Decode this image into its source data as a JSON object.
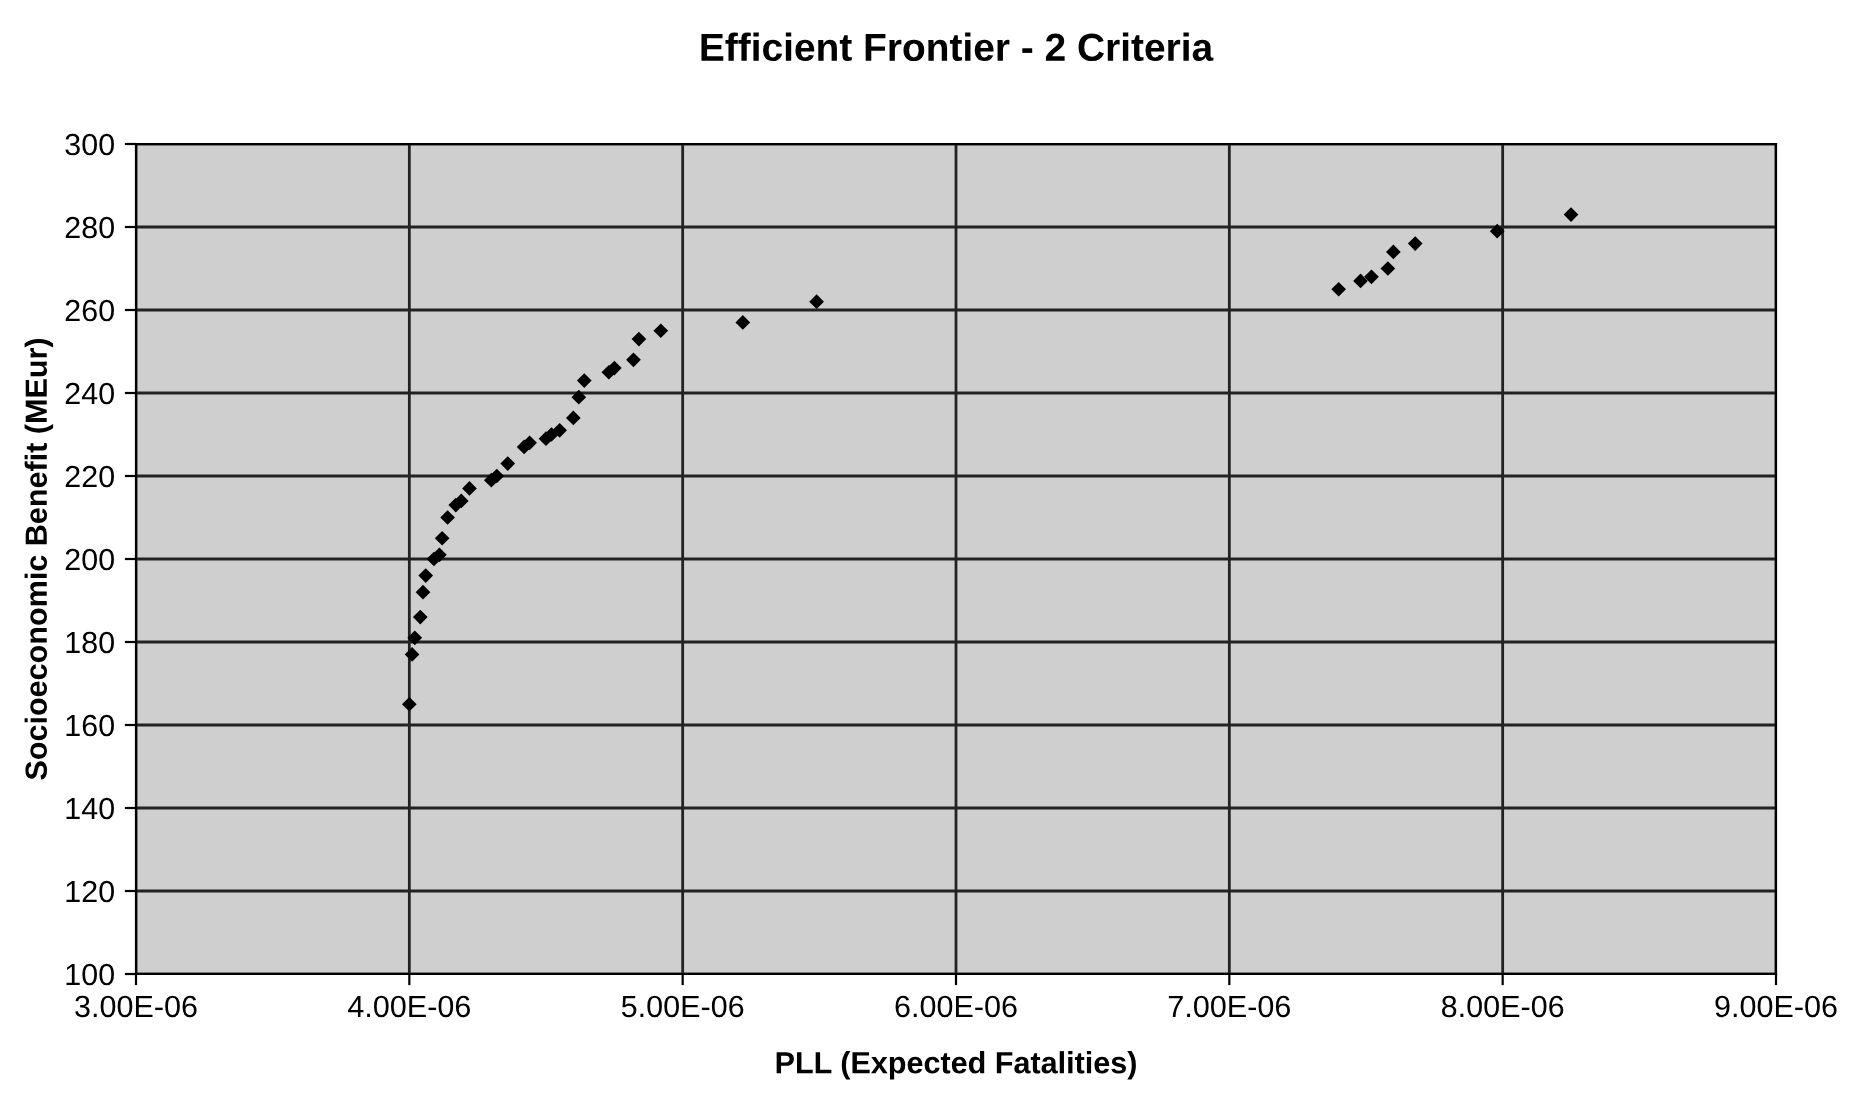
{
  "chart_data": {
    "type": "scatter",
    "title": "Efficient Frontier - 2 Criteria",
    "xlabel": "PLL (Expected Fatalities)",
    "ylabel": "Socioeconomic Benefit (MEur)",
    "x": [
      4e-06,
      4.01e-06,
      4.02e-06,
      4.04e-06,
      4.05e-06,
      4.06e-06,
      4.09e-06,
      4.11e-06,
      4.12e-06,
      4.14e-06,
      4.17e-06,
      4.19e-06,
      4.22e-06,
      4.3e-06,
      4.32e-06,
      4.36e-06,
      4.42e-06,
      4.44e-06,
      4.5e-06,
      4.52e-06,
      4.55e-06,
      4.6e-06,
      4.62e-06,
      4.64e-06,
      4.73e-06,
      4.75e-06,
      4.82e-06,
      4.84e-06,
      4.92e-06,
      5.22e-06,
      5.49e-06,
      7.4e-06,
      7.48e-06,
      7.52e-06,
      7.58e-06,
      7.6e-06,
      7.68e-06,
      7.98e-06,
      8.25e-06
    ],
    "values": [
      165,
      177,
      181,
      186,
      192,
      196,
      200,
      201,
      205,
      210,
      213,
      214,
      217,
      219,
      220,
      223,
      227,
      228,
      229,
      230,
      231,
      234,
      239,
      243,
      245,
      246,
      248,
      253,
      255,
      257,
      262,
      265,
      267,
      268,
      270,
      274,
      276,
      279,
      283
    ],
    "color": "#000000",
    "marker": "diamond",
    "xlim": [
      3e-06,
      9e-06
    ],
    "ylim": [
      100,
      300
    ],
    "xticks": [
      {
        "value": 3e-06,
        "label": "3.00E-06"
      },
      {
        "value": 4e-06,
        "label": "4.00E-06"
      },
      {
        "value": 5e-06,
        "label": "5.00E-06"
      },
      {
        "value": 6e-06,
        "label": "6.00E-06"
      },
      {
        "value": 7e-06,
        "label": "7.00E-06"
      },
      {
        "value": 8e-06,
        "label": "8.00E-06"
      },
      {
        "value": 9e-06,
        "label": "9.00E-06"
      }
    ],
    "yticks": [
      100,
      120,
      140,
      160,
      180,
      200,
      220,
      240,
      260,
      280,
      300
    ],
    "grid": true
  }
}
